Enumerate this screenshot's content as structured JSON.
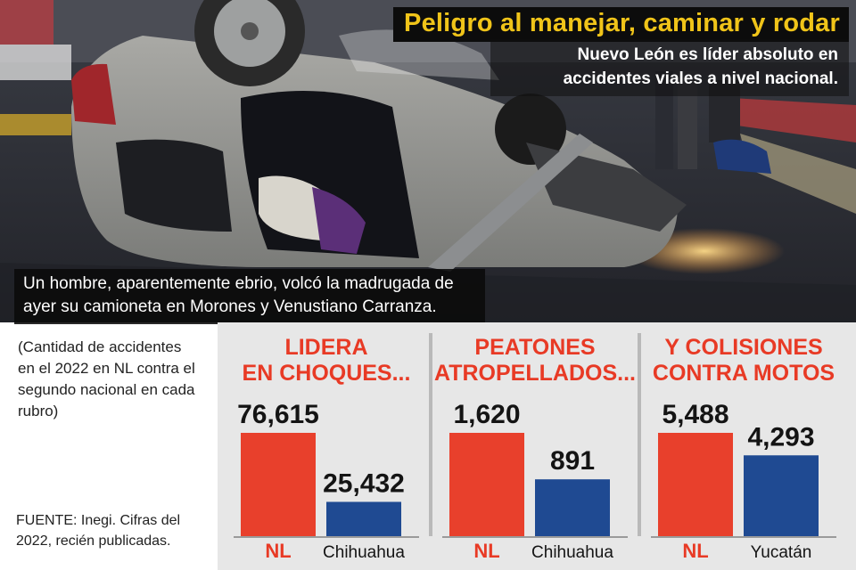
{
  "header": {
    "title": "Peligro al manejar, caminar y rodar",
    "subtitle": "Nuevo León es líder absoluto en accidentes viales a nivel nacional.",
    "photo_caption": "Un hombre, aparentemente ebrio, volcó la madrugada de ayer su camioneta en Morones y Venustiano Carranza."
  },
  "note": "(Cantidad de accidentes en el 2022 en NL contra el segundo nacional en cada rubro)",
  "source": "FUENTE: Inegi. Cifras del 2022, recién publicadas.",
  "colors": {
    "accent": "#e83a25",
    "nl_bar": "#e8402c",
    "second_bar": "#1f4a92",
    "panel_bg": "#e7e7e7",
    "title_yellow": "#f0c419"
  },
  "chart_data": [
    {
      "type": "bar",
      "title": "LIDERA EN CHOQUES...",
      "categories": [
        "NL",
        "Chihuahua"
      ],
      "values": [
        76615,
        25432
      ],
      "value_labels": [
        "76,615",
        "25,432"
      ]
    },
    {
      "type": "bar",
      "title": "PEATONES ATROPELLADOS...",
      "categories": [
        "NL",
        "Chihuahua"
      ],
      "values": [
        1620,
        891
      ],
      "value_labels": [
        "1,620",
        "891"
      ]
    },
    {
      "type": "bar",
      "title": "Y COLISIONES CONTRA MOTOS",
      "categories": [
        "NL",
        "Yucatán"
      ],
      "values": [
        5488,
        4293
      ],
      "value_labels": [
        "5,488",
        "4,293"
      ]
    }
  ]
}
